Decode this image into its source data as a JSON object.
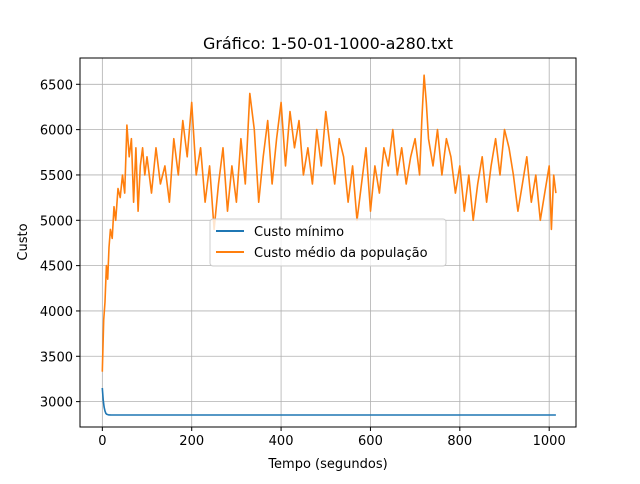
{
  "chart_data": {
    "type": "line",
    "title": "Gráfico: 1-50-01-1000-a280.txt",
    "xlabel": "Tempo (segundos)",
    "ylabel": "Custo",
    "xlim": [
      -50,
      1060
    ],
    "ylim": [
      2720,
      6790
    ],
    "x_ticks": [
      0,
      200,
      400,
      600,
      800,
      1000
    ],
    "y_ticks": [
      3000,
      3500,
      4000,
      4500,
      5000,
      5500,
      6000,
      6500
    ],
    "grid": true,
    "legend_position": "center",
    "series": [
      {
        "name": "Custo mínimo",
        "color": "#1f77b4",
        "x": [
          0,
          2,
          4,
          6,
          8,
          10,
          13,
          16,
          20,
          40,
          100,
          200,
          400,
          600,
          800,
          1000,
          1015
        ],
        "y": [
          3150,
          3020,
          2940,
          2895,
          2870,
          2860,
          2855,
          2853,
          2852,
          2852,
          2852,
          2852,
          2852,
          2852,
          2852,
          2852,
          2852
        ]
      },
      {
        "name": "Custo médio da população",
        "color": "#ff7f0e",
        "x": [
          0,
          3,
          6,
          9,
          12,
          15,
          18,
          22,
          26,
          30,
          35,
          40,
          45,
          50,
          55,
          60,
          65,
          70,
          75,
          80,
          85,
          90,
          95,
          100,
          110,
          120,
          130,
          140,
          150,
          160,
          170,
          180,
          190,
          200,
          210,
          220,
          230,
          240,
          250,
          260,
          270,
          280,
          290,
          300,
          310,
          320,
          330,
          340,
          350,
          360,
          370,
          380,
          390,
          400,
          410,
          420,
          430,
          440,
          450,
          460,
          470,
          480,
          490,
          500,
          510,
          520,
          530,
          540,
          550,
          560,
          570,
          580,
          590,
          600,
          610,
          620,
          630,
          640,
          650,
          660,
          670,
          680,
          690,
          700,
          710,
          715,
          720,
          725,
          730,
          740,
          750,
          760,
          770,
          780,
          790,
          800,
          810,
          820,
          830,
          840,
          850,
          860,
          870,
          880,
          890,
          900,
          910,
          920,
          930,
          940,
          950,
          960,
          970,
          980,
          990,
          1000,
          1005,
          1010,
          1015
        ],
        "y": [
          3330,
          3900,
          4100,
          4500,
          4350,
          4700,
          4900,
          4800,
          5150,
          5000,
          5350,
          5250,
          5500,
          5300,
          6050,
          5700,
          5900,
          5200,
          5800,
          5100,
          5600,
          5800,
          5500,
          5700,
          5300,
          5800,
          5400,
          5600,
          5200,
          5900,
          5500,
          6100,
          5700,
          6300,
          5500,
          5800,
          5200,
          5600,
          4900,
          5400,
          5800,
          5100,
          5600,
          5200,
          5900,
          5400,
          6400,
          6000,
          5200,
          5700,
          6100,
          5400,
          5900,
          6300,
          5600,
          6200,
          5800,
          6100,
          5500,
          5800,
          5400,
          6000,
          5600,
          6200,
          5800,
          5400,
          5900,
          5700,
          5200,
          5600,
          5000,
          5400,
          5800,
          5100,
          5600,
          5300,
          5800,
          5600,
          6000,
          5500,
          5800,
          5400,
          5700,
          5900,
          5500,
          6100,
          6600,
          6300,
          5900,
          5600,
          6000,
          5500,
          5900,
          5700,
          5300,
          5600,
          5100,
          5500,
          5000,
          5400,
          5700,
          5200,
          5600,
          5900,
          5500,
          6000,
          5800,
          5500,
          5100,
          5400,
          5700,
          5200,
          5500,
          5000,
          5300,
          5600,
          4900,
          5500,
          5300
        ]
      }
    ]
  }
}
